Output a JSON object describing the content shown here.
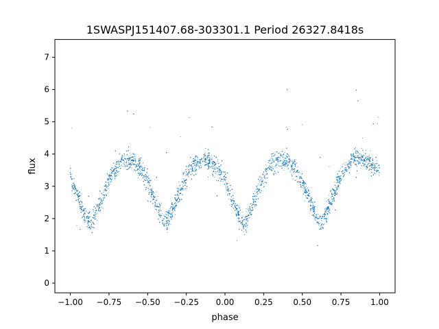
{
  "chart_data": {
    "type": "scatter",
    "title": "1SWASPJ151407.68-303301.1 Period 26327.8418s",
    "xlabel": "phase",
    "ylabel": "flux",
    "xlim": [
      -1.1,
      1.1
    ],
    "ylim": [
      -0.3,
      7.55
    ],
    "xticks": [
      -1.0,
      -0.75,
      -0.5,
      -0.25,
      0.0,
      0.25,
      0.5,
      0.75,
      1.0
    ],
    "xtick_labels": [
      "−1.00",
      "−0.75",
      "−0.50",
      "−0.25",
      "0.00",
      "0.25",
      "0.50",
      "0.75",
      "1.00"
    ],
    "yticks": [
      0,
      1,
      2,
      3,
      4,
      5,
      6,
      7
    ],
    "ytick_labels": [
      "0",
      "1",
      "2",
      "3",
      "4",
      "5",
      "6",
      "7"
    ],
    "grid": false,
    "marker_color": "#1f77b4",
    "series": [
      {
        "phase": [
          -1.0,
          -0.95,
          -0.9,
          -0.87,
          -0.8,
          -0.75,
          -0.7,
          -0.65,
          -0.6,
          -0.55,
          -0.5,
          -0.45,
          -0.4,
          -0.37,
          -0.3,
          -0.25,
          -0.2,
          -0.15,
          -0.1,
          -0.05,
          0.0,
          0.05,
          0.1,
          0.13,
          0.2,
          0.25,
          0.3,
          0.35,
          0.4,
          0.45,
          0.5,
          0.55,
          0.6,
          0.63,
          0.7,
          0.75,
          0.8,
          0.85,
          0.9,
          0.95,
          1.0
        ],
        "flux_median": [
          3.3,
          2.7,
          2.05,
          1.85,
          2.5,
          3.2,
          3.6,
          3.85,
          3.85,
          3.6,
          3.15,
          2.5,
          2.0,
          1.9,
          2.7,
          3.3,
          3.65,
          3.85,
          3.8,
          3.55,
          3.2,
          2.55,
          1.95,
          1.8,
          2.7,
          3.35,
          3.7,
          3.85,
          3.8,
          3.55,
          3.15,
          2.55,
          2.0,
          1.85,
          2.75,
          3.35,
          3.7,
          3.9,
          3.85,
          3.7,
          3.55
        ],
        "flux_spread": 0.3
      }
    ]
  }
}
